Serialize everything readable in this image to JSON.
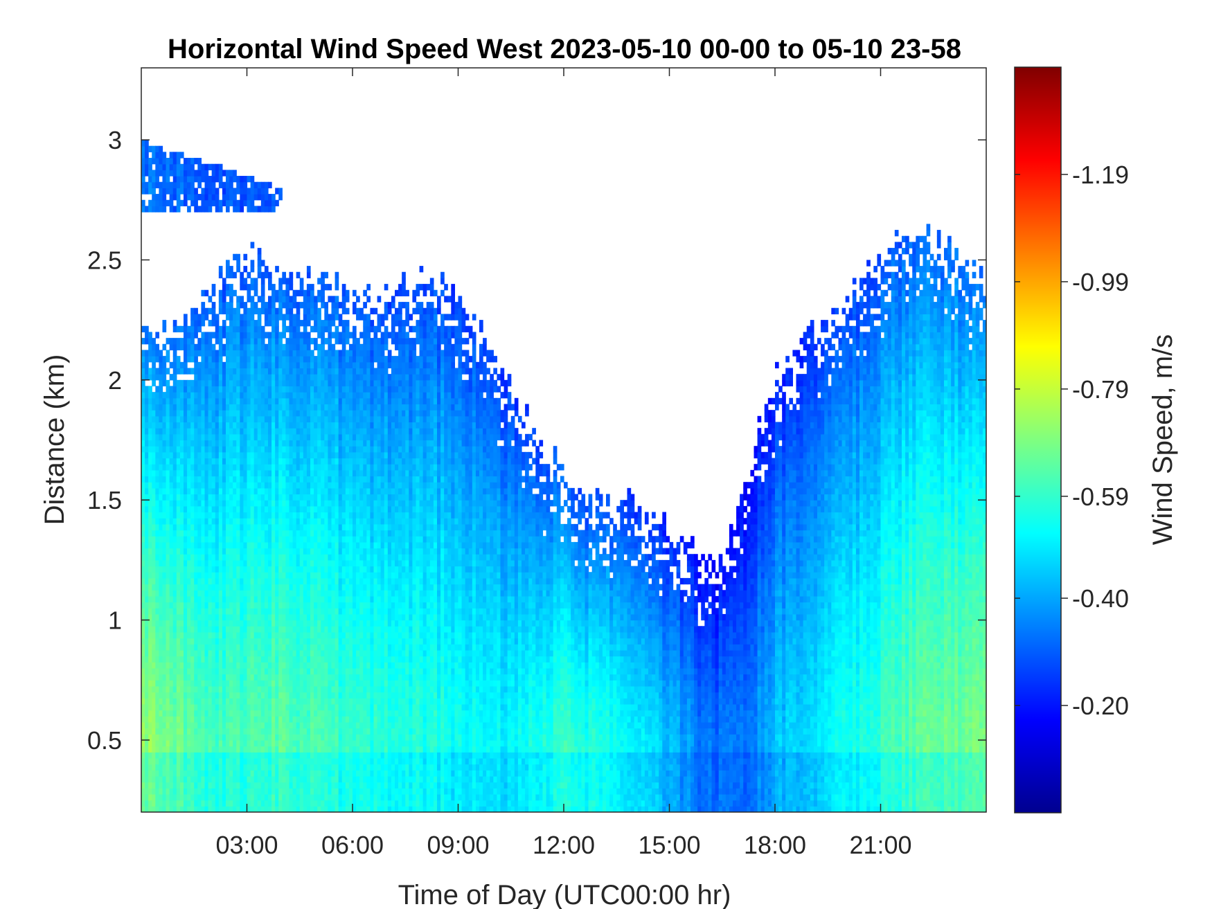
{
  "chart_data": {
    "type": "heatmap",
    "title": "Horizontal Wind Speed West 2023-05-10 00-00 to 05-10 23-58",
    "xlabel": "Time of Day (UTC00:00 hr)",
    "ylabel": "Distance (km)",
    "colorbar_label": "Wind Speed, m/s",
    "colormap": "jet",
    "x_unit": "hours",
    "xlim": [
      0,
      24
    ],
    "ylim": [
      0.2,
      3.3
    ],
    "x_ticks": [
      {
        "value": 3,
        "label": "03:00"
      },
      {
        "value": 6,
        "label": "06:00"
      },
      {
        "value": 9,
        "label": "09:00"
      },
      {
        "value": 12,
        "label": "12:00"
      },
      {
        "value": 15,
        "label": "15:00"
      },
      {
        "value": 18,
        "label": "18:00"
      },
      {
        "value": 21,
        "label": "21:00"
      }
    ],
    "y_ticks": [
      {
        "value": 0.5,
        "label": "0.5"
      },
      {
        "value": 1,
        "label": "1"
      },
      {
        "value": 1.5,
        "label": "1.5"
      },
      {
        "value": 2,
        "label": "2"
      },
      {
        "value": 2.5,
        "label": "2.5"
      },
      {
        "value": 3,
        "label": "3"
      }
    ],
    "colorbar_range": [
      -1.39,
      0
    ],
    "colorbar_ticks": [
      {
        "value": -1.19,
        "label": "-1.19"
      },
      {
        "value": -0.99,
        "label": "-0.99"
      },
      {
        "value": -0.79,
        "label": "-0.79"
      },
      {
        "value": -0.59,
        "label": "-0.59"
      },
      {
        "value": -0.4,
        "label": "-0.40"
      },
      {
        "value": -0.2,
        "label": "-0.20"
      }
    ],
    "data_top_height_km": {
      "hours": [
        0,
        1,
        2,
        3,
        4,
        5,
        6,
        7,
        8,
        9,
        10,
        11,
        12,
        13,
        14,
        15,
        16,
        16.5,
        17,
        17.5,
        18,
        18.5,
        19,
        20,
        21,
        22,
        23,
        24
      ],
      "km": [
        2.2,
        2.25,
        2.4,
        2.55,
        2.5,
        2.45,
        2.4,
        2.35,
        2.45,
        2.35,
        2.15,
        1.85,
        1.6,
        1.5,
        1.5,
        1.4,
        1.3,
        1.25,
        1.5,
        1.85,
        2.0,
        2.15,
        2.2,
        2.35,
        2.5,
        2.65,
        2.55,
        2.4
      ]
    },
    "upper_layer_0_to_4h_km": [
      2.7,
      3.0
    ],
    "mean_speed_profile": {
      "note_free": true,
      "hours": [
        0,
        2,
        4,
        6,
        8,
        10,
        12,
        14,
        16,
        17,
        18,
        20,
        22,
        24
      ],
      "low_level_speed": [
        -0.75,
        -0.62,
        -0.66,
        -0.6,
        -0.58,
        -0.52,
        -0.62,
        -0.55,
        -0.36,
        -0.34,
        -0.45,
        -0.55,
        -0.66,
        -0.7
      ]
    }
  }
}
